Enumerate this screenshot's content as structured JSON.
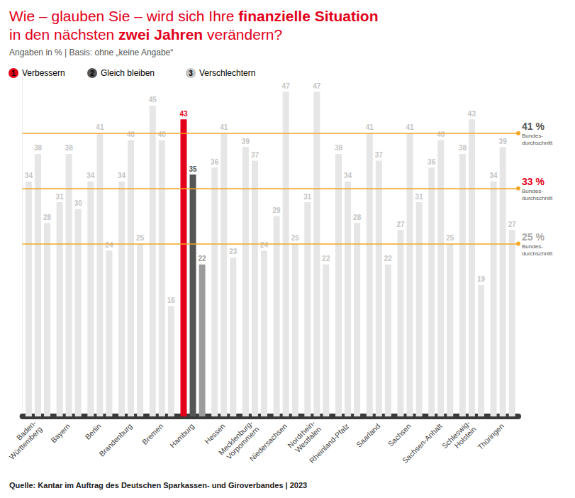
{
  "chart_data": {
    "type": "bar",
    "title": [
      [
        {
          "text": "Wie – glauben Sie – wird sich Ihre "
        },
        {
          "text": "finanzielle Situation",
          "bold": true
        }
      ],
      [
        {
          "text": "in den nächsten "
        },
        {
          "text": "zwei Jahren",
          "bold": true
        },
        {
          "text": " verändern?"
        }
      ]
    ],
    "subtitle": "Angaben in % | Basis: ohne „keine Angabe“",
    "source": "Quelle: Kantar im Auftrag des Deutschen Sparkassen- und Giroverbandes | 2023",
    "categories": [
      "Baden-\nWürttemberg",
      "Bayern",
      "Berlin",
      "Brandenburg",
      "Bremen",
      "Hamburg",
      "Hessen",
      "Mecklenburg-\nVorpommern",
      "Niedersachsen",
      "Nordrhein-\nWestfalen",
      "Rheinland-Pfalz",
      "Saarland",
      "Sachsen",
      "Sachsen-Anhalt",
      "Schleswig-\nHolstein",
      "Thüringen"
    ],
    "series": [
      {
        "name": "Verbessern",
        "number": "1",
        "color": "#e2001a",
        "colors": [
          "#e6e6e6",
          "#e6e6e6",
          "#e6e6e6",
          "#e6e6e6",
          "#e6e6e6",
          "#e2001a",
          "#e6e6e6",
          "#e6e6e6",
          "#e6e6e6",
          "#e6e6e6",
          "#e6e6e6",
          "#e6e6e6",
          "#e6e6e6",
          "#e6e6e6",
          "#e6e6e6",
          "#e6e6e6"
        ],
        "values": [
          34,
          31,
          34,
          34,
          45,
          43,
          36,
          39,
          29,
          31,
          38,
          41,
          27,
          36,
          38,
          34
        ]
      },
      {
        "name": "Gleich bleiben",
        "number": "2",
        "color": "#555555",
        "colors": [
          "#e6e6e6",
          "#e6e6e6",
          "#e6e6e6",
          "#e6e6e6",
          "#e6e6e6",
          "#555555",
          "#e6e6e6",
          "#e6e6e6",
          "#e6e6e6",
          "#e6e6e6",
          "#e6e6e6",
          "#e6e6e6",
          "#e6e6e6",
          "#e6e6e6",
          "#e6e6e6",
          "#e6e6e6"
        ],
        "values": [
          38,
          38,
          41,
          40,
          40,
          35,
          41,
          37,
          47,
          47,
          34,
          37,
          41,
          40,
          43,
          39
        ]
      },
      {
        "name": "Verschlechtern",
        "number": "3",
        "color": "#9b9b9b",
        "colors": [
          "#e6e6e6",
          "#e6e6e6",
          "#e6e6e6",
          "#e6e6e6",
          "#e6e6e6",
          "#9b9b9b",
          "#e6e6e6",
          "#e6e6e6",
          "#e6e6e6",
          "#e6e6e6",
          "#e6e6e6",
          "#e6e6e6",
          "#e6e6e6",
          "#e6e6e6",
          "#e6e6e6",
          "#e6e6e6"
        ],
        "values": [
          28,
          30,
          24,
          25,
          16,
          22,
          23,
          24,
          25,
          22,
          28,
          22,
          31,
          25,
          19,
          27
        ]
      }
    ],
    "reference_lines": [
      {
        "series": "Gleich bleiben",
        "value": 41,
        "label": "41 %",
        "text": [
          "Bundes-",
          "durchschnitt"
        ]
      },
      {
        "series": "Verbessern",
        "value": 33,
        "label": "33 %",
        "text": [
          "Bundes-",
          "durchschnitt"
        ]
      },
      {
        "series": "Verschlechtern",
        "value": 25,
        "label": "25 %",
        "text": [
          "Bundes-",
          "durchschnitt"
        ]
      }
    ],
    "ylim": [
      0,
      50
    ],
    "grid": false,
    "legend": "top-left",
    "data_labels": true,
    "tick_labels": "x"
  }
}
